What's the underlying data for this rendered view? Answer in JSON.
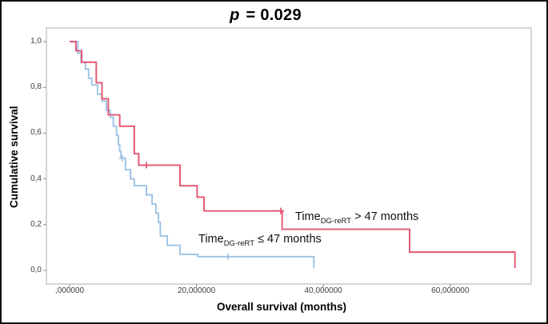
{
  "figure": {
    "title": {
      "italic": "p",
      "rest": " = 0.029"
    }
  },
  "chart_data": {
    "type": "line",
    "subtype": "kaplan-meier-step",
    "title": "p = 0.029",
    "xlabel": "Overall survival (months)",
    "ylabel": "Cumulative survival",
    "xlim": [
      0,
      73
    ],
    "ylim": [
      0,
      1.02
    ],
    "grid": false,
    "legend_position": "inline-labels",
    "x_ticks": {
      "values": [
        0,
        20,
        40,
        60
      ],
      "labels": [
        ",000000",
        "20,000000",
        "40,000000",
        "60,000000"
      ]
    },
    "y_ticks": {
      "values": [
        1.0,
        0.8,
        0.6,
        0.4,
        0.2,
        0.0
      ],
      "labels": [
        "1,0",
        "0,8",
        "0,6",
        "0,4",
        "0,2",
        "0,0"
      ]
    },
    "series": [
      {
        "id": "time-over-47",
        "name": "Time DG-reRT > 47 months",
        "label_parts": {
          "prefix": "Time",
          "sub": "DG-reRT",
          "suffix": " > 47 months"
        },
        "color": "#e4556e",
        "points": [
          [
            0,
            1.0
          ],
          [
            1.0,
            0.96
          ],
          [
            1.9,
            0.91
          ],
          [
            4.2,
            0.82
          ],
          [
            5.1,
            0.75
          ],
          [
            6.1,
            0.68
          ],
          [
            7.9,
            0.63
          ],
          [
            10.2,
            0.51
          ],
          [
            10.9,
            0.46
          ],
          [
            17.4,
            0.37
          ],
          [
            20.1,
            0.32
          ],
          [
            21.2,
            0.26
          ],
          [
            33.5,
            0.18
          ],
          [
            53.6,
            0.08
          ],
          [
            70.2,
            0.01
          ]
        ],
        "censored": [
          [
            12.1,
            0.46
          ],
          [
            33.3,
            0.26
          ]
        ]
      },
      {
        "id": "time-under-47",
        "name": "Time DG-reRT ≤ 47 months",
        "label_parts": {
          "prefix": "Time",
          "sub": "DG-reRT",
          "suffix": " ≤ 47 months"
        },
        "color": "#9cc2e5",
        "points": [
          [
            0.8,
            1.0
          ],
          [
            1.3,
            0.95
          ],
          [
            1.8,
            0.91
          ],
          [
            2.5,
            0.88
          ],
          [
            3.0,
            0.84
          ],
          [
            3.5,
            0.81
          ],
          [
            4.4,
            0.77
          ],
          [
            5.1,
            0.74
          ],
          [
            5.8,
            0.7
          ],
          [
            6.4,
            0.67
          ],
          [
            6.9,
            0.63
          ],
          [
            7.4,
            0.59
          ],
          [
            7.7,
            0.55
          ],
          [
            7.9,
            0.52
          ],
          [
            8.1,
            0.49
          ],
          [
            8.8,
            0.44
          ],
          [
            9.6,
            0.4
          ],
          [
            10.2,
            0.37
          ],
          [
            12.1,
            0.33
          ],
          [
            13.0,
            0.29
          ],
          [
            13.6,
            0.25
          ],
          [
            14.0,
            0.21
          ],
          [
            14.3,
            0.15
          ],
          [
            15.4,
            0.11
          ],
          [
            17.4,
            0.07
          ],
          [
            20.2,
            0.06
          ],
          [
            38.5,
            0.01
          ]
        ],
        "censored": [
          [
            8.3,
            0.49
          ],
          [
            25.0,
            0.06
          ]
        ]
      }
    ]
  }
}
